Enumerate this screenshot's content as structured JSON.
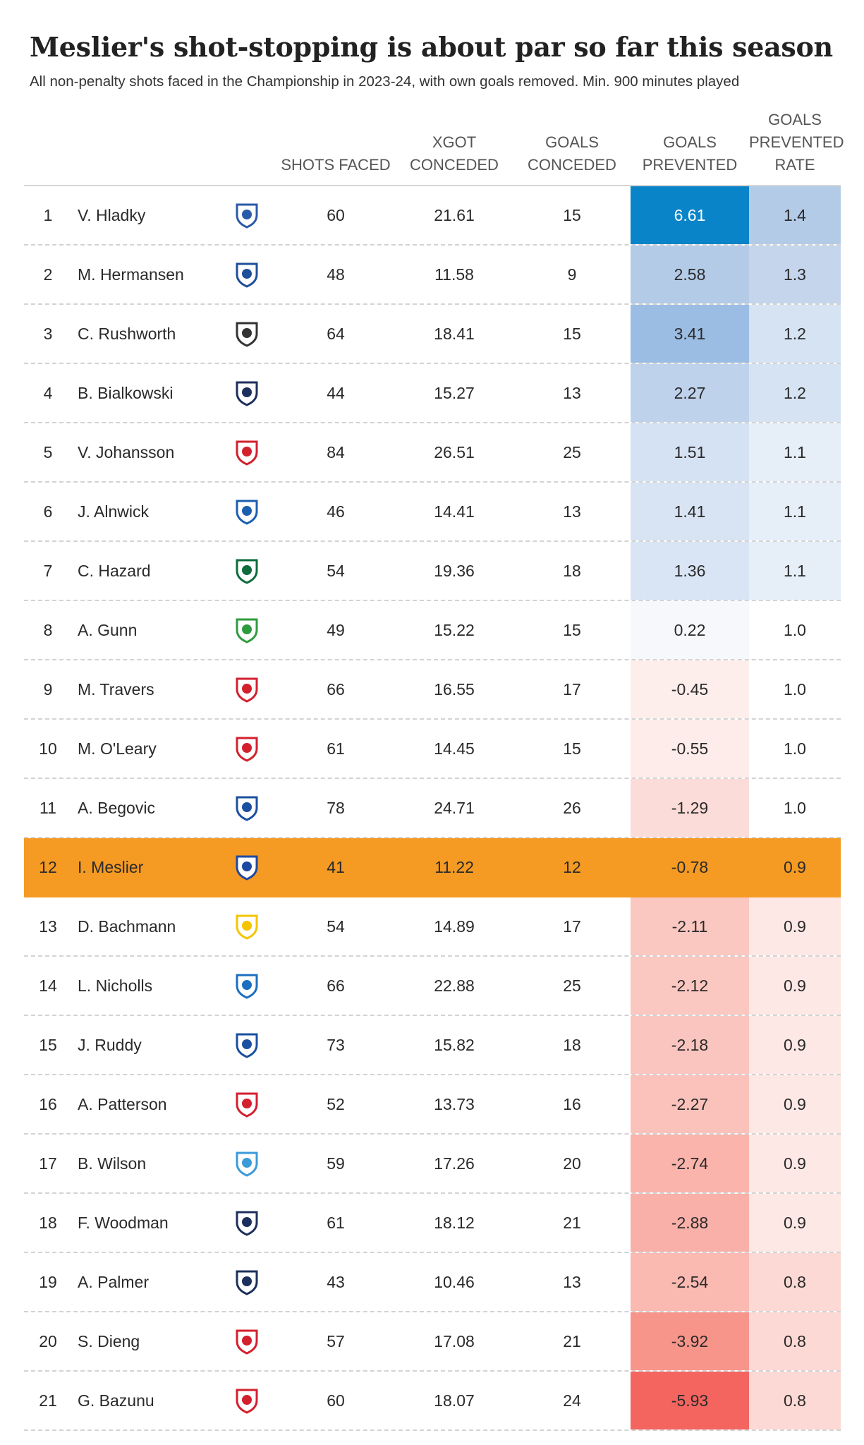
{
  "title": "Meslier's shot-stopping is about par so far this season",
  "subtitle": "All non-penalty shots faced in the Championship in 2023-24, with own goals removed. Min. 900 minutes played",
  "columns": {
    "shots": "SHOTS FACED",
    "xgot": "XGOT CONCEDED",
    "conceded": "GOALS CONCEDED",
    "prevented": "GOALS PREVENTED",
    "rate": "GOALS PREVENTED RATE"
  },
  "highlight_color": "#f59a23",
  "chart_data": {
    "type": "table",
    "rows": [
      {
        "rank": "1",
        "name": "V. Hladky",
        "club_color": "#2b5aa8",
        "shots": 60,
        "xgot": "21.61",
        "conceded": 15,
        "prevented": "6.61",
        "rate": "1.4",
        "prev_bg": "#0a84c8",
        "prev_fg": "#ffffff",
        "rate_bg": "#b4cbe7"
      },
      {
        "rank": "2",
        "name": "M. Hermansen",
        "club_color": "#1f4f9a",
        "shots": 48,
        "xgot": "11.58",
        "conceded": 9,
        "prevented": "2.58",
        "rate": "1.3",
        "prev_bg": "#b4cbe7",
        "prev_fg": "#2a2a2a",
        "rate_bg": "#c4d5ec"
      },
      {
        "rank": "3",
        "name": "C. Rushworth",
        "club_color": "#333333",
        "shots": 64,
        "xgot": "18.41",
        "conceded": 15,
        "prevented": "3.41",
        "rate": "1.2",
        "prev_bg": "#9cbde3",
        "prev_fg": "#2a2a2a",
        "rate_bg": "#d6e3f3"
      },
      {
        "rank": "4",
        "name": "B. Bialkowski",
        "club_color": "#1d2f5c",
        "shots": 44,
        "xgot": "15.27",
        "conceded": 13,
        "prevented": "2.27",
        "rate": "1.2",
        "prev_bg": "#bfd2ec",
        "prev_fg": "#2a2a2a",
        "rate_bg": "#d6e3f3"
      },
      {
        "rank": "5",
        "name": "V. Johansson",
        "club_color": "#d3202d",
        "shots": 84,
        "xgot": "26.51",
        "conceded": 25,
        "prevented": "1.51",
        "rate": "1.1",
        "prev_bg": "#d5e2f3",
        "prev_fg": "#2a2a2a",
        "rate_bg": "#e6eef8"
      },
      {
        "rank": "6",
        "name": "J. Alnwick",
        "club_color": "#1b5fb0",
        "shots": 46,
        "xgot": "14.41",
        "conceded": 13,
        "prevented": "1.41",
        "rate": "1.1",
        "prev_bg": "#d8e4f4",
        "prev_fg": "#2a2a2a",
        "rate_bg": "#e6eef8"
      },
      {
        "rank": "7",
        "name": "C. Hazard",
        "club_color": "#0d6b3c",
        "shots": 54,
        "xgot": "19.36",
        "conceded": 18,
        "prevented": "1.36",
        "rate": "1.1",
        "prev_bg": "#d9e5f4",
        "prev_fg": "#2a2a2a",
        "rate_bg": "#e6eef8"
      },
      {
        "rank": "8",
        "name": "A. Gunn",
        "club_color": "#2e9b3e",
        "shots": 49,
        "xgot": "15.22",
        "conceded": 15,
        "prevented": "0.22",
        "rate": "1.0",
        "prev_bg": "#f6f8fb",
        "prev_fg": "#2a2a2a",
        "rate_bg": "#ffffff"
      },
      {
        "rank": "9",
        "name": "M. Travers",
        "club_color": "#d3202d",
        "shots": 66,
        "xgot": "16.55",
        "conceded": 17,
        "prevented": "-0.45",
        "rate": "1.0",
        "prev_bg": "#fdeeec",
        "prev_fg": "#2a2a2a",
        "rate_bg": "#ffffff"
      },
      {
        "rank": "10",
        "name": "M. O'Leary",
        "club_color": "#d3202d",
        "shots": 61,
        "xgot": "14.45",
        "conceded": 15,
        "prevented": "-0.55",
        "rate": "1.0",
        "prev_bg": "#fdecea",
        "prev_fg": "#2a2a2a",
        "rate_bg": "#ffffff"
      },
      {
        "rank": "11",
        "name": "A. Begovic",
        "club_color": "#1b4fa0",
        "shots": 78,
        "xgot": "24.71",
        "conceded": 26,
        "prevented": "-1.29",
        "rate": "1.0",
        "prev_bg": "#fcdcd8",
        "prev_fg": "#2a2a2a",
        "rate_bg": "#ffffff"
      },
      {
        "rank": "12",
        "name": "I. Meslier",
        "club_color": "#1d4aa0",
        "shots": 41,
        "xgot": "11.22",
        "conceded": 12,
        "prevented": "-0.78",
        "rate": "0.9",
        "prev_bg": "#f59a23",
        "prev_fg": "#2a2a2a",
        "rate_bg": "#f59a23",
        "highlight": true
      },
      {
        "rank": "13",
        "name": "D. Bachmann",
        "club_color": "#f4c400",
        "shots": 54,
        "xgot": "14.89",
        "conceded": 17,
        "prevented": "-2.11",
        "rate": "0.9",
        "prev_bg": "#fbc7c1",
        "prev_fg": "#2a2a2a",
        "rate_bg": "#fde8e5"
      },
      {
        "rank": "14",
        "name": "L. Nicholls",
        "club_color": "#1b6fc0",
        "shots": 66,
        "xgot": "22.88",
        "conceded": 25,
        "prevented": "-2.12",
        "rate": "0.9",
        "prev_bg": "#fbc7c1",
        "prev_fg": "#2a2a2a",
        "rate_bg": "#fde8e5"
      },
      {
        "rank": "15",
        "name": "J. Ruddy",
        "club_color": "#1b4fa0",
        "shots": 73,
        "xgot": "15.82",
        "conceded": 18,
        "prevented": "-2.18",
        "rate": "0.9",
        "prev_bg": "#fbc5bf",
        "prev_fg": "#2a2a2a",
        "rate_bg": "#fde8e5"
      },
      {
        "rank": "16",
        "name": "A. Patterson",
        "club_color": "#d3202d",
        "shots": 52,
        "xgot": "13.73",
        "conceded": 16,
        "prevented": "-2.27",
        "rate": "0.9",
        "prev_bg": "#fbc2bb",
        "prev_fg": "#2a2a2a",
        "rate_bg": "#fde8e5"
      },
      {
        "rank": "17",
        "name": "B. Wilson",
        "club_color": "#3a9bd8",
        "shots": 59,
        "xgot": "17.26",
        "conceded": 20,
        "prevented": "-2.74",
        "rate": "0.9",
        "prev_bg": "#fab4ac",
        "prev_fg": "#2a2a2a",
        "rate_bg": "#fde8e5"
      },
      {
        "rank": "18",
        "name": "F. Woodman",
        "club_color": "#1d2f5c",
        "shots": 61,
        "xgot": "18.12",
        "conceded": 21,
        "prevented": "-2.88",
        "rate": "0.9",
        "prev_bg": "#f9b0a8",
        "prev_fg": "#2a2a2a",
        "rate_bg": "#fde8e5"
      },
      {
        "rank": "19",
        "name": "A. Palmer",
        "club_color": "#1d2f5c",
        "shots": 43,
        "xgot": "10.46",
        "conceded": 13,
        "prevented": "-2.54",
        "rate": "0.8",
        "prev_bg": "#fab9b1",
        "prev_fg": "#2a2a2a",
        "rate_bg": "#fcd9d5"
      },
      {
        "rank": "20",
        "name": "S. Dieng",
        "club_color": "#d3202d",
        "shots": 57,
        "xgot": "17.08",
        "conceded": 21,
        "prevented": "-3.92",
        "rate": "0.8",
        "prev_bg": "#f7958b",
        "prev_fg": "#2a2a2a",
        "rate_bg": "#fcd9d5"
      },
      {
        "rank": "21",
        "name": "G. Bazunu",
        "club_color": "#d3202d",
        "shots": 60,
        "xgot": "18.07",
        "conceded": 24,
        "prevented": "-5.93",
        "rate": "0.8",
        "prev_bg": "#f46560",
        "prev_fg": "#2a2a2a",
        "rate_bg": "#fcd9d5"
      }
    ]
  }
}
